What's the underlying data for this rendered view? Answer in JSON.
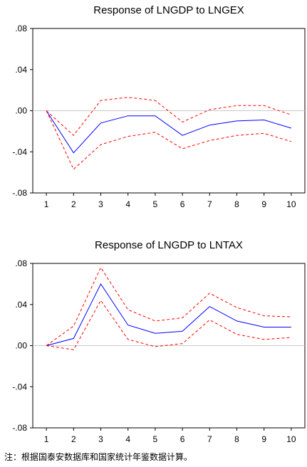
{
  "chart_data": [
    {
      "type": "line",
      "title": "Response of LNGDP to LNGEX",
      "x": [
        1,
        2,
        3,
        4,
        5,
        6,
        7,
        8,
        9,
        10
      ],
      "ylim": [
        -0.08,
        0.08
      ],
      "yticks": [
        ".08",
        ".04",
        ".00",
        "-.04",
        "-.08"
      ],
      "ytick_values": [
        0.08,
        0.04,
        0.0,
        -0.04,
        -0.08
      ],
      "xticks": [
        "1",
        "2",
        "3",
        "4",
        "5",
        "6",
        "7",
        "8",
        "9",
        "10"
      ],
      "zero_line": true,
      "series": [
        {
          "values": [
            0.0,
            -0.041,
            -0.012,
            -0.005,
            -0.005,
            -0.024,
            -0.014,
            -0.01,
            -0.009,
            -0.017
          ],
          "color": "#0000ff",
          "style": "solid"
        },
        {
          "values": [
            0.0,
            -0.024,
            0.01,
            0.013,
            0.01,
            -0.011,
            0.001,
            0.005,
            0.005,
            -0.004
          ],
          "color": "#ff0000",
          "style": "dashed"
        },
        {
          "values": [
            0.0,
            -0.057,
            -0.033,
            -0.025,
            -0.021,
            -0.037,
            -0.029,
            -0.024,
            -0.022,
            -0.03
          ],
          "color": "#ff0000",
          "style": "dashed"
        }
      ]
    },
    {
      "type": "line",
      "title": "Response of LNGDP to LNTAX",
      "x": [
        1,
        2,
        3,
        4,
        5,
        6,
        7,
        8,
        9,
        10
      ],
      "ylim": [
        -0.08,
        0.08
      ],
      "yticks": [
        ".08",
        ".04",
        ".00",
        "-.04",
        "-.08"
      ],
      "ytick_values": [
        0.08,
        0.04,
        0.0,
        -0.04,
        -0.08
      ],
      "xticks": [
        "1",
        "2",
        "3",
        "4",
        "5",
        "6",
        "7",
        "8",
        "9",
        "10"
      ],
      "zero_line": true,
      "series": [
        {
          "values": [
            0.0,
            0.007,
            0.06,
            0.02,
            0.012,
            0.014,
            0.038,
            0.024,
            0.018,
            0.018
          ],
          "color": "#0000ff",
          "style": "solid"
        },
        {
          "values": [
            0.0,
            0.019,
            0.076,
            0.035,
            0.024,
            0.027,
            0.051,
            0.037,
            0.029,
            0.028
          ],
          "color": "#ff0000",
          "style": "dashed"
        },
        {
          "values": [
            0.0,
            -0.004,
            0.044,
            0.006,
            -0.001,
            0.002,
            0.025,
            0.011,
            0.006,
            0.008
          ],
          "color": "#ff0000",
          "style": "dashed"
        }
      ]
    }
  ],
  "footnote": "注：根据国泰安数据库和国家统计年鉴数据计算。"
}
